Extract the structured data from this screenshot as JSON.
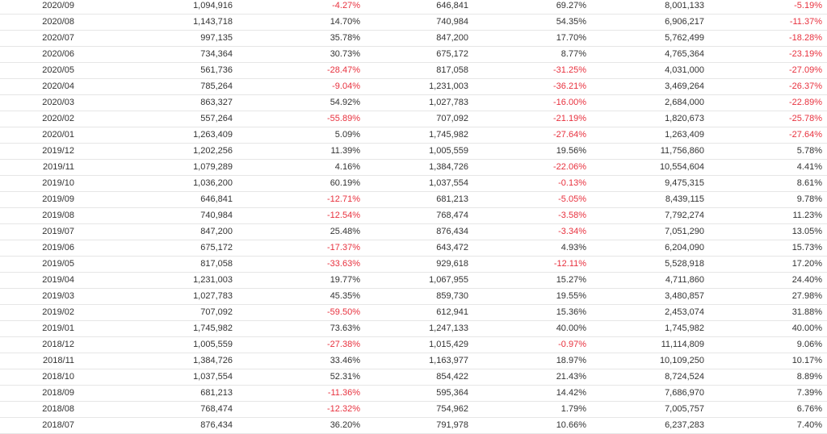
{
  "colors": {
    "negative": "#e8313e",
    "text": "#333333",
    "row_border": "#e6e6e6"
  },
  "rows": [
    [
      "2020/09",
      "1,094,916",
      "-4.27%",
      "646,841",
      "69.27%",
      "8,001,133",
      "-5.19%"
    ],
    [
      "2020/08",
      "1,143,718",
      "14.70%",
      "740,984",
      "54.35%",
      "6,906,217",
      "-11.37%"
    ],
    [
      "2020/07",
      "997,135",
      "35.78%",
      "847,200",
      "17.70%",
      "5,762,499",
      "-18.28%"
    ],
    [
      "2020/06",
      "734,364",
      "30.73%",
      "675,172",
      "8.77%",
      "4,765,364",
      "-23.19%"
    ],
    [
      "2020/05",
      "561,736",
      "-28.47%",
      "817,058",
      "-31.25%",
      "4,031,000",
      "-27.09%"
    ],
    [
      "2020/04",
      "785,264",
      "-9.04%",
      "1,231,003",
      "-36.21%",
      "3,469,264",
      "-26.37%"
    ],
    [
      "2020/03",
      "863,327",
      "54.92%",
      "1,027,783",
      "-16.00%",
      "2,684,000",
      "-22.89%"
    ],
    [
      "2020/02",
      "557,264",
      "-55.89%",
      "707,092",
      "-21.19%",
      "1,820,673",
      "-25.78%"
    ],
    [
      "2020/01",
      "1,263,409",
      "5.09%",
      "1,745,982",
      "-27.64%",
      "1,263,409",
      "-27.64%"
    ],
    [
      "2019/12",
      "1,202,256",
      "11.39%",
      "1,005,559",
      "19.56%",
      "11,756,860",
      "5.78%"
    ],
    [
      "2019/11",
      "1,079,289",
      "4.16%",
      "1,384,726",
      "-22.06%",
      "10,554,604",
      "4.41%"
    ],
    [
      "2019/10",
      "1,036,200",
      "60.19%",
      "1,037,554",
      "-0.13%",
      "9,475,315",
      "8.61%"
    ],
    [
      "2019/09",
      "646,841",
      "-12.71%",
      "681,213",
      "-5.05%",
      "8,439,115",
      "9.78%"
    ],
    [
      "2019/08",
      "740,984",
      "-12.54%",
      "768,474",
      "-3.58%",
      "7,792,274",
      "11.23%"
    ],
    [
      "2019/07",
      "847,200",
      "25.48%",
      "876,434",
      "-3.34%",
      "7,051,290",
      "13.05%"
    ],
    [
      "2019/06",
      "675,172",
      "-17.37%",
      "643,472",
      "4.93%",
      "6,204,090",
      "15.73%"
    ],
    [
      "2019/05",
      "817,058",
      "-33.63%",
      "929,618",
      "-12.11%",
      "5,528,918",
      "17.20%"
    ],
    [
      "2019/04",
      "1,231,003",
      "19.77%",
      "1,067,955",
      "15.27%",
      "4,711,860",
      "24.40%"
    ],
    [
      "2019/03",
      "1,027,783",
      "45.35%",
      "859,730",
      "19.55%",
      "3,480,857",
      "27.98%"
    ],
    [
      "2019/02",
      "707,092",
      "-59.50%",
      "612,941",
      "15.36%",
      "2,453,074",
      "31.88%"
    ],
    [
      "2019/01",
      "1,745,982",
      "73.63%",
      "1,247,133",
      "40.00%",
      "1,745,982",
      "40.00%"
    ],
    [
      "2018/12",
      "1,005,559",
      "-27.38%",
      "1,015,429",
      "-0.97%",
      "11,114,809",
      "9.06%"
    ],
    [
      "2018/11",
      "1,384,726",
      "33.46%",
      "1,163,977",
      "18.97%",
      "10,109,250",
      "10.17%"
    ],
    [
      "2018/10",
      "1,037,554",
      "52.31%",
      "854,422",
      "21.43%",
      "8,724,524",
      "8.89%"
    ],
    [
      "2018/09",
      "681,213",
      "-11.36%",
      "595,364",
      "14.42%",
      "7,686,970",
      "7.39%"
    ],
    [
      "2018/08",
      "768,474",
      "-12.32%",
      "754,962",
      "1.79%",
      "7,005,757",
      "6.76%"
    ],
    [
      "2018/07",
      "876,434",
      "36.20%",
      "791,978",
      "10.66%",
      "6,237,283",
      "7.40%"
    ]
  ]
}
